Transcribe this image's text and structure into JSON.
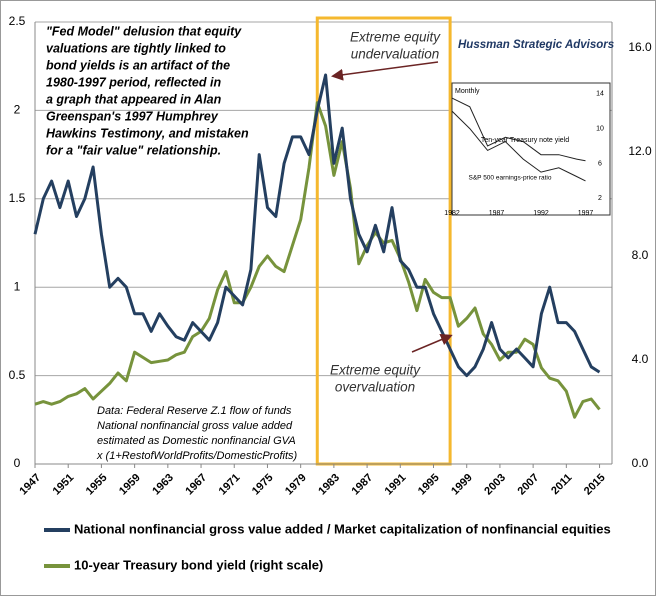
{
  "chart_data": {
    "type": "line",
    "note_lines": [
      "\"Fed Model\" delusion that equity",
      "valuations are tightly linked to",
      "bond yields is an artifact of the",
      "1980-1997 period, reflected in",
      "a graph that appeared in Alan",
      "Greenspan's 1997 Humphrey",
      "Hawkins Testimony, and mistaken",
      "for a \"fair value\" relationship."
    ],
    "source_lines": [
      "Data:  Federal Reserve Z.1 flow of funds",
      "National nonfinancial gross value added",
      "estimated as Domestic nonfinancial GVA",
      "x (1+RestofWorldProfits/DomesticProfits)"
    ],
    "credit": "Hussman Strategic Advisors",
    "annotations": [
      {
        "lines": [
          "Extreme equity",
          "undervaluation"
        ]
      },
      {
        "lines": [
          "Extreme equity",
          "overvaluation"
        ]
      }
    ],
    "highlight": [
      1981,
      1997
    ],
    "highlight_color": "#f5b82e",
    "x": [
      1947,
      1948,
      1949,
      1950,
      1951,
      1952,
      1953,
      1954,
      1955,
      1956,
      1957,
      1958,
      1959,
      1960,
      1961,
      1962,
      1963,
      1964,
      1965,
      1966,
      1967,
      1968,
      1969,
      1970,
      1971,
      1972,
      1973,
      1974,
      1975,
      1976,
      1977,
      1978,
      1979,
      1980,
      1981,
      1982,
      1983,
      1984,
      1985,
      1986,
      1987,
      1988,
      1989,
      1990,
      1991,
      1992,
      1993,
      1994,
      1995,
      1996,
      1997,
      1998,
      1999,
      2000,
      2001,
      2002,
      2003,
      2004,
      2005,
      2006,
      2007,
      2008,
      2009,
      2010,
      2011,
      2012,
      2013,
      2014,
      2015
    ],
    "xlim": [
      1947,
      2016.5
    ],
    "xticks": [
      1947,
      1951,
      1955,
      1959,
      1963,
      1967,
      1971,
      1975,
      1979,
      1983,
      1987,
      1991,
      1995,
      1999,
      2003,
      2007,
      2011,
      2015
    ],
    "ylim": [
      0,
      2.5
    ],
    "yticks": [
      0,
      0.5,
      1,
      1.5,
      2,
      2.5
    ],
    "y2lim": [
      0,
      17
    ],
    "y2ticks": [
      {
        "value": 0,
        "label": "0.0"
      },
      {
        "value": 4,
        "label": "4.0"
      },
      {
        "value": 8,
        "label": "8.0"
      },
      {
        "value": 12,
        "label": "12.0"
      },
      {
        "value": 16,
        "label": "16.0"
      }
    ],
    "grid": true,
    "series": [
      {
        "name": "National nonfinancial gross value added / Market capitalization of nonfinancial equities",
        "color": "#243f60",
        "values": [
          1.3,
          1.5,
          1.6,
          1.45,
          1.6,
          1.4,
          1.5,
          1.68,
          1.3,
          1.0,
          1.05,
          1.0,
          0.85,
          0.85,
          0.75,
          0.85,
          0.78,
          0.72,
          0.7,
          0.8,
          0.75,
          0.7,
          0.8,
          1.0,
          0.95,
          0.9,
          1.1,
          1.75,
          1.45,
          1.4,
          1.7,
          1.85,
          1.85,
          1.75,
          2.0,
          2.2,
          1.7,
          1.9,
          1.5,
          1.3,
          1.2,
          1.35,
          1.2,
          1.45,
          1.15,
          1.1,
          1.0,
          1.0,
          0.85,
          0.75,
          0.65,
          0.55,
          0.5,
          0.55,
          0.65,
          0.8,
          0.65,
          0.6,
          0.65,
          0.6,
          0.55,
          0.85,
          1.0,
          0.8,
          0.8,
          0.75,
          0.65,
          0.55,
          0.52
        ]
      },
      {
        "name": "10-year Treasury bond yield (right scale)",
        "color": "#77933c",
        "axis": "y2",
        "values": [
          2.3,
          2.4,
          2.3,
          2.4,
          2.6,
          2.7,
          2.9,
          2.5,
          2.8,
          3.1,
          3.5,
          3.2,
          4.3,
          4.1,
          3.9,
          3.95,
          4.0,
          4.2,
          4.3,
          4.9,
          5.1,
          5.6,
          6.7,
          7.4,
          6.2,
          6.2,
          6.8,
          7.6,
          8.0,
          7.6,
          7.4,
          8.4,
          9.4,
          11.4,
          13.9,
          13.0,
          11.1,
          12.4,
          10.6,
          7.7,
          8.4,
          8.9,
          8.5,
          8.6,
          7.9,
          7.0,
          5.9,
          7.1,
          6.6,
          6.4,
          6.4,
          5.3,
          5.6,
          6.0,
          5.0,
          4.6,
          4.0,
          4.3,
          4.3,
          4.8,
          4.6,
          3.7,
          3.3,
          3.2,
          2.8,
          1.8,
          2.4,
          2.5,
          2.1
        ]
      }
    ],
    "inset": {
      "title": "Monthly",
      "labels": [
        "Ten-year Treasury note yield",
        "S&P 500 earnings-price ratio"
      ],
      "x": [
        1982,
        1984,
        1986,
        1988,
        1990,
        1992,
        1994,
        1996,
        1997
      ],
      "xlim": [
        1982,
        1997.5
      ],
      "xticks": [
        1982,
        1987,
        1992,
        1997
      ],
      "ylim": [
        1,
        15
      ],
      "yticks": [
        14,
        10,
        6,
        2
      ],
      "series": [
        {
          "values": [
            13.5,
            12.5,
            8,
            9,
            8.5,
            7,
            7,
            6.5,
            6.3
          ]
        },
        {
          "values": [
            12,
            10,
            7.5,
            8.5,
            6.5,
            5,
            5.5,
            4.5,
            4
          ]
        }
      ]
    }
  }
}
